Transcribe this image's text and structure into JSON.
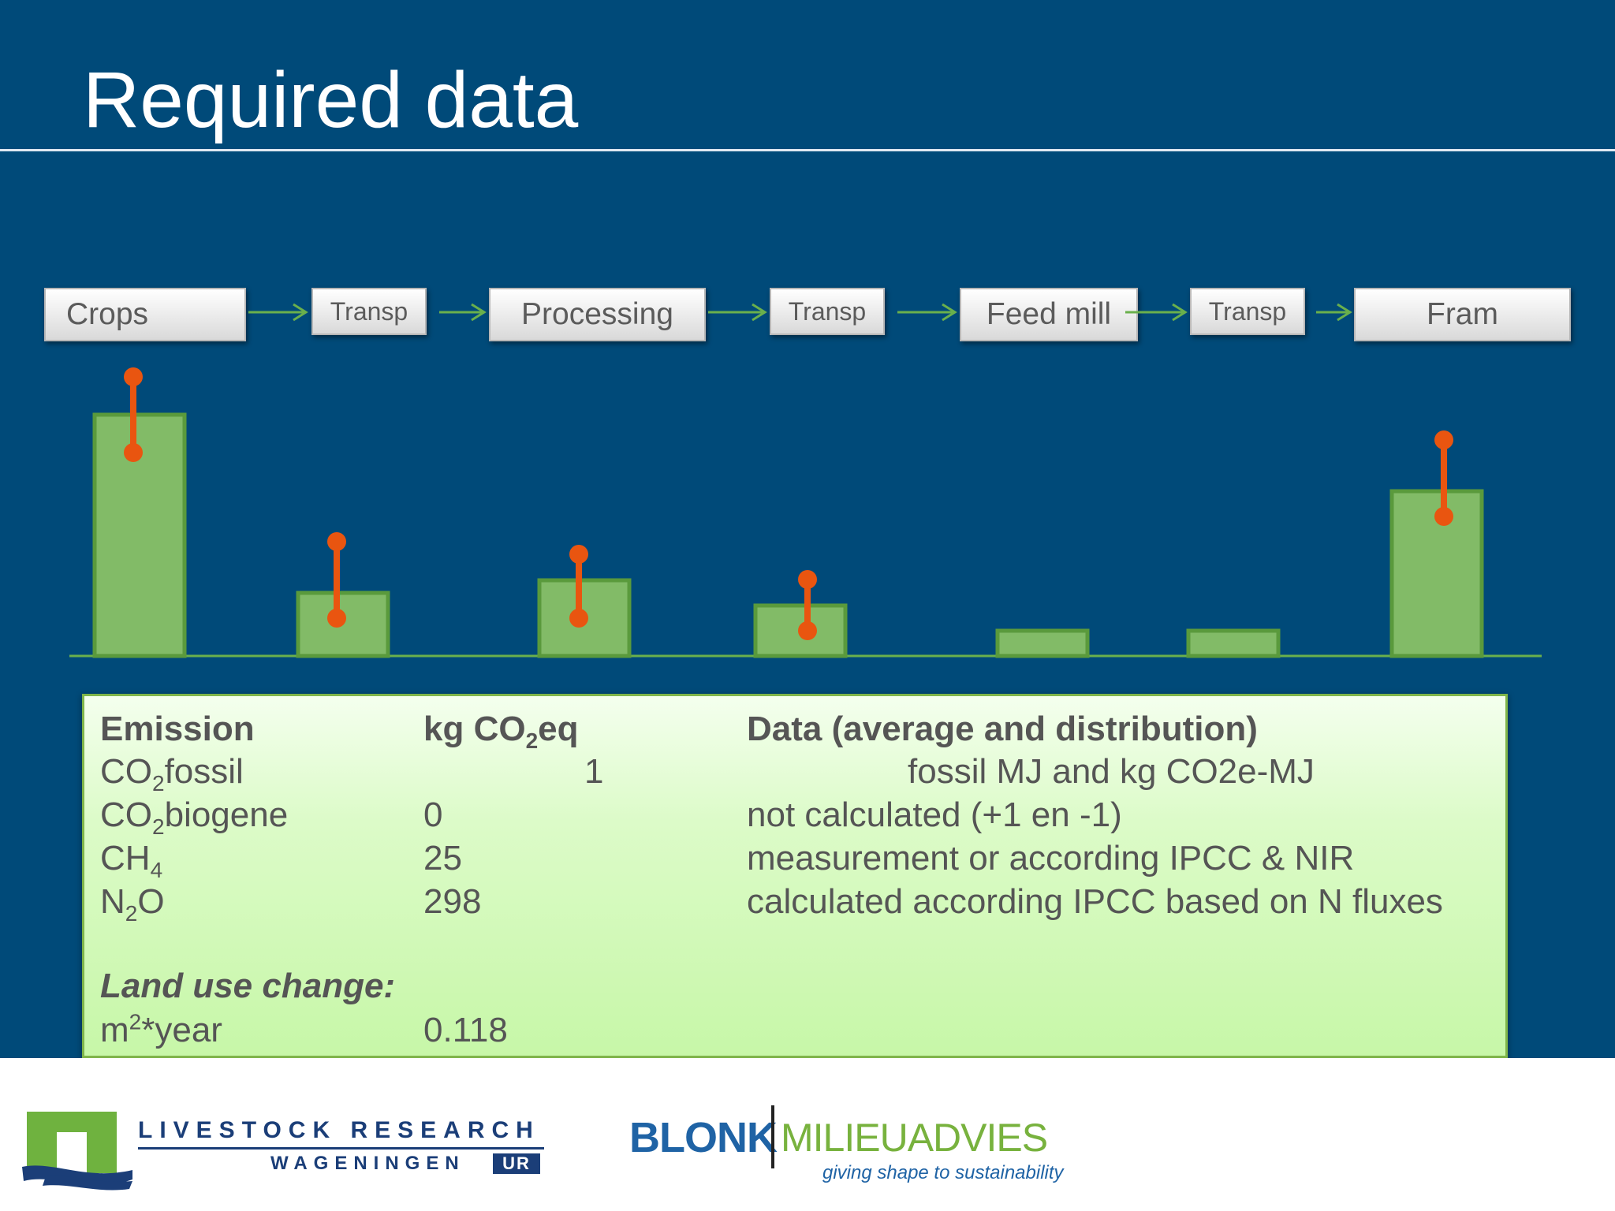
{
  "slide": {
    "title": "Required data"
  },
  "chain": [
    {
      "label": "Crops"
    },
    {
      "label": "Transp"
    },
    {
      "label": "Processing"
    },
    {
      "label": "Transp"
    },
    {
      "label": "Feed mill"
    },
    {
      "label": "Transp"
    },
    {
      "label": "Fram"
    }
  ],
  "table": {
    "header": {
      "emission": "Emission",
      "kg": "kg CO",
      "kg_sub": "2",
      "kg_tail": "eq",
      "data": "Data (average and distribution)"
    },
    "rows": [
      {
        "pre": "CO",
        "sub": "2",
        "post": "fossil",
        "value": "1",
        "data": "fossil MJ and kg CO2e-MJ"
      },
      {
        "pre": "CO",
        "sub": "2",
        "post": "biogene",
        "value": "0",
        "data": "not calculated (+1 en -1)"
      },
      {
        "pre": "CH",
        "sub": "4",
        "post": "",
        "value": "25",
        "data": "measurement or according IPCC & NIR"
      },
      {
        "pre": "N",
        "sub": "2",
        "post": "O",
        "value": "298",
        "data": "calculated according IPCC based on N fluxes"
      }
    ],
    "land_use": {
      "heading": "Land use change:",
      "unit_pre": "m",
      "unit_sup": "2",
      "unit_post": "*year",
      "value": "0.118"
    }
  },
  "footer": {
    "livestock_line1": "LIVESTOCK RESEARCH",
    "livestock_line2": "WAGENINGEN",
    "livestock_ur": "UR",
    "blonk": "BLONK",
    "milieuadvies": "MILIEUADVIES",
    "tagline": "giving shape to sustainability"
  },
  "colors": {
    "background": "#004a79",
    "bar_fill": "#82bb67",
    "bar_stroke": "#5a9a3c",
    "whisker": "#e95510",
    "arrow": "#6ab04c",
    "panel": "#d4f9bd"
  }
}
